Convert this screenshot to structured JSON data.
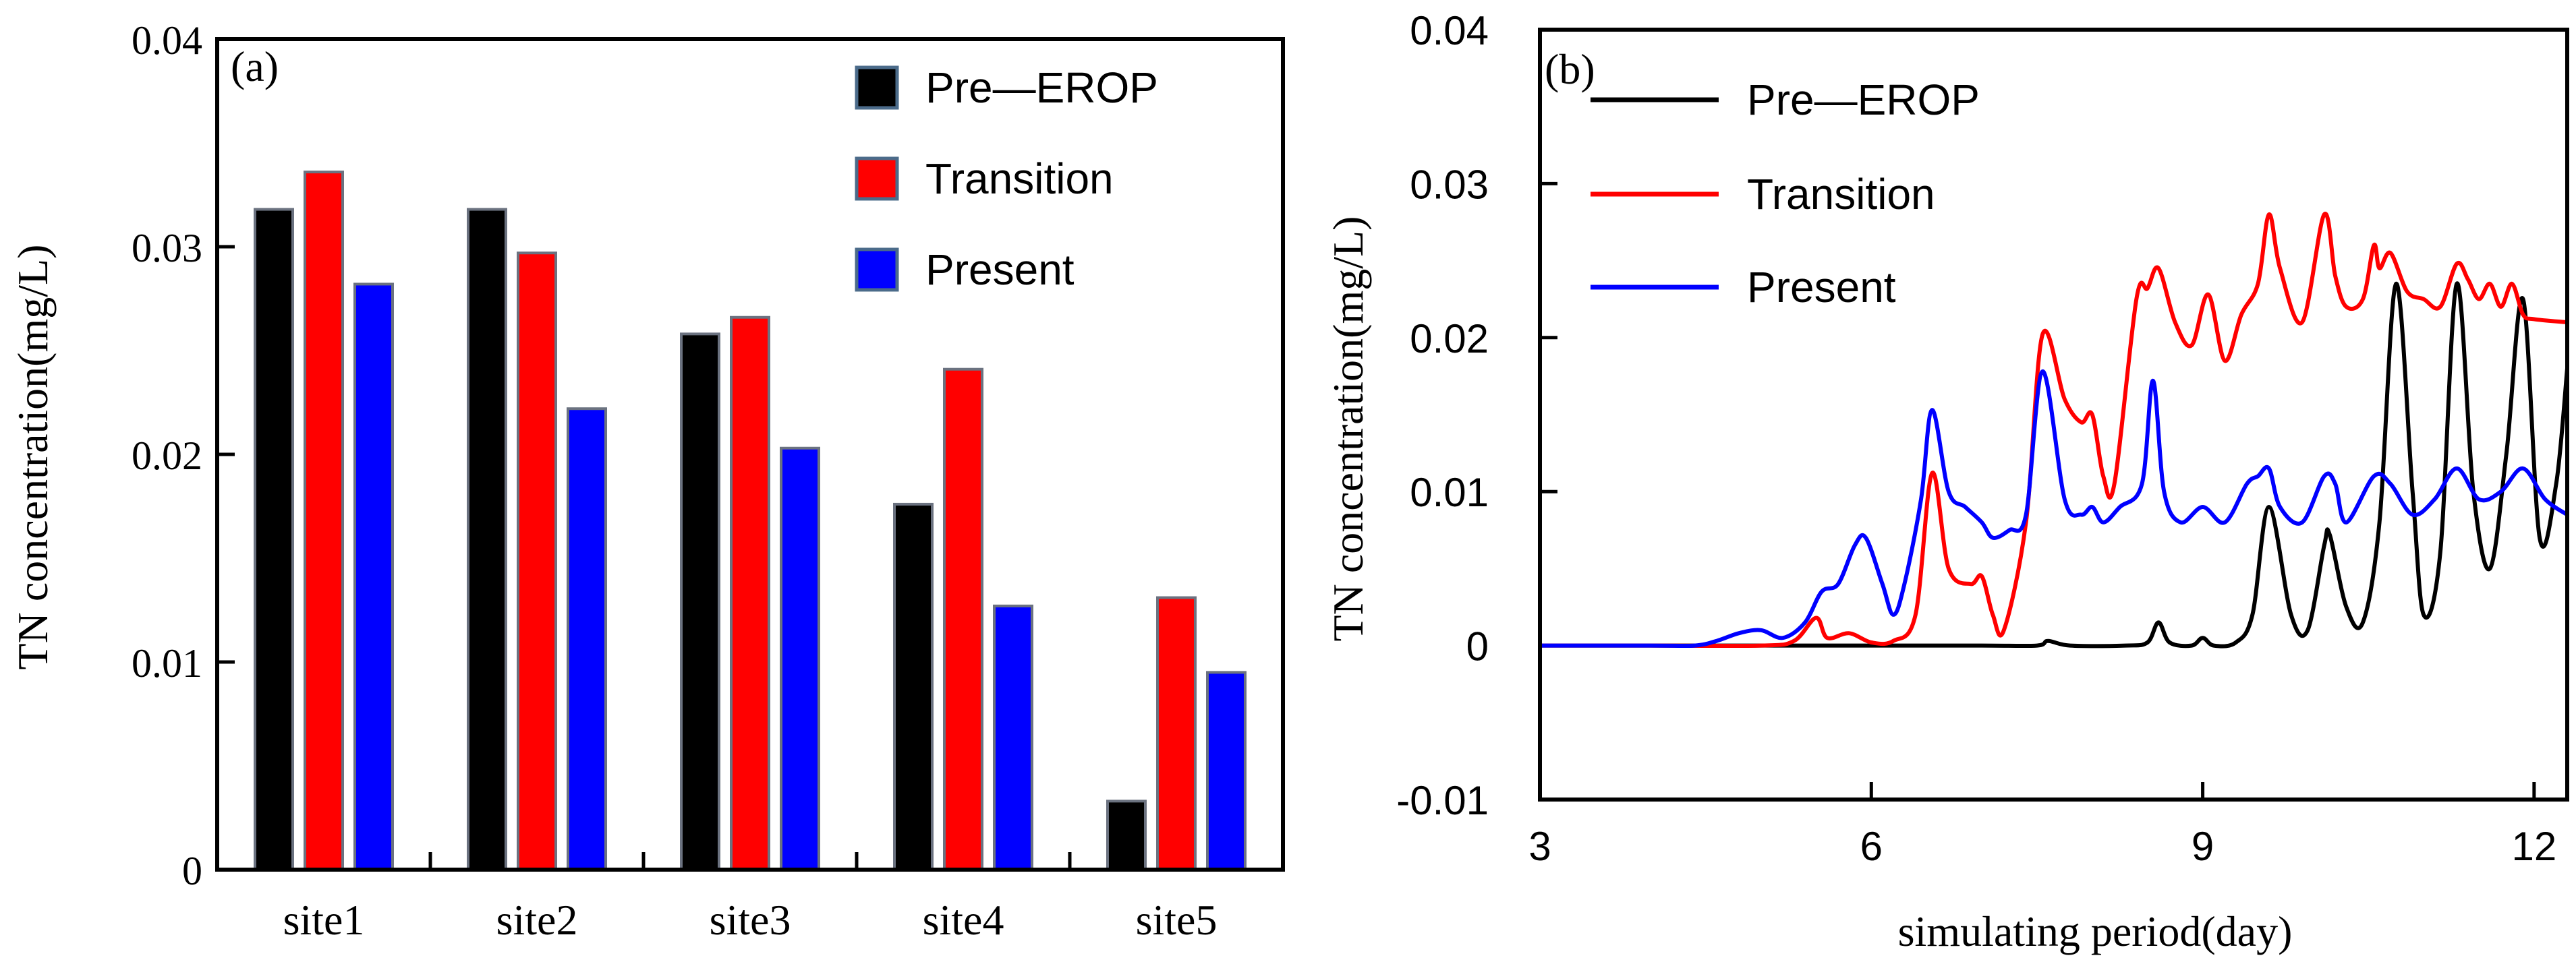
{
  "chart_data": [
    {
      "type": "bar",
      "panel_label": "(a)",
      "ylabel": "TN concentration(mg/L)",
      "xlabel": "",
      "ylim": [
        0,
        0.04
      ],
      "yticks": [
        0,
        0.01,
        0.02,
        0.03,
        0.04
      ],
      "ytick_labels": [
        "0",
        "0.01",
        "0.02",
        "0.03",
        "0.04"
      ],
      "categories": [
        "site1",
        "site2",
        "site3",
        "site4",
        "site5"
      ],
      "series": [
        {
          "name": "Pre—EROP",
          "color": "#000000",
          "values": [
            0.0318,
            0.0318,
            0.0258,
            0.0176,
            0.0033
          ]
        },
        {
          "name": "Transition",
          "color": "#ff0000",
          "values": [
            0.0336,
            0.0297,
            0.0266,
            0.0241,
            0.0131
          ]
        },
        {
          "name": "Present",
          "color": "#0000ff",
          "values": [
            0.0282,
            0.0222,
            0.0203,
            0.0127,
            0.0095
          ]
        }
      ],
      "legend_position": "top-right",
      "grid": false
    },
    {
      "type": "line",
      "panel_label": "(b)",
      "ylabel": "TN concentration(mg/L)",
      "xlabel": "simulating period(day)",
      "xlim": [
        3,
        12.3
      ],
      "xticks": [
        3,
        6,
        9,
        12
      ],
      "xtick_labels": [
        "3",
        "6",
        "9",
        "12"
      ],
      "ylim": [
        -0.01,
        0.04
      ],
      "yticks": [
        -0.01,
        0,
        0.01,
        0.02,
        0.03,
        0.04
      ],
      "ytick_labels": [
        "-0.01",
        "0",
        "0.01",
        "0.02",
        "0.03",
        "0.04"
      ],
      "series": [
        {
          "name": "Pre—EROP",
          "color": "#000000",
          "x": [
            3,
            4,
            5,
            6,
            7,
            7.5,
            7.6,
            7.8,
            8.3,
            8.5,
            8.6,
            8.7,
            8.9,
            9.0,
            9.1,
            9.3,
            9.45,
            9.6,
            9.8,
            9.95,
            10.1,
            10.15,
            10.3,
            10.45,
            10.6,
            10.75,
            10.9,
            11.0,
            11.15,
            11.3,
            11.45,
            11.6,
            11.75,
            11.9,
            12.05,
            12.2,
            12.3
          ],
          "y": [
            0,
            0,
            0,
            0,
            0,
            0,
            0.0003,
            0,
            0,
            0.0002,
            0.0015,
            0.0002,
            0,
            0.0005,
            0,
            0.0002,
            0.002,
            0.009,
            0.002,
            0.001,
            0.0065,
            0.0072,
            0.0025,
            0.0015,
            0.008,
            0.0235,
            0.01,
            0.002,
            0.006,
            0.0235,
            0.01,
            0.005,
            0.0125,
            0.0225,
            0.007,
            0.0105,
            0.018
          ]
        },
        {
          "name": "Transition",
          "color": "#ff0000",
          "x": [
            3,
            4,
            5,
            5.3,
            5.5,
            5.6,
            5.8,
            6.0,
            6.2,
            6.4,
            6.55,
            6.7,
            6.9,
            7.0,
            7.1,
            7.2,
            7.4,
            7.55,
            7.75,
            7.9,
            8.0,
            8.1,
            8.2,
            8.4,
            8.5,
            8.6,
            8.75,
            8.9,
            9.05,
            9.2,
            9.35,
            9.5,
            9.6,
            9.7,
            9.9,
            10.1,
            10.2,
            10.3,
            10.45,
            10.55,
            10.6,
            10.7,
            10.85,
            11.0,
            11.15,
            11.3,
            11.4,
            11.5,
            11.6,
            11.7,
            11.8,
            11.9,
            12.0,
            12.3
          ],
          "y": [
            0,
            0,
            0,
            0.0003,
            0.0018,
            0.0005,
            0.0008,
            0.0002,
            0.0003,
            0.002,
            0.0112,
            0.005,
            0.004,
            0.0045,
            0.002,
            0.001,
            0.008,
            0.0202,
            0.016,
            0.0145,
            0.015,
            0.011,
            0.0105,
            0.0225,
            0.0232,
            0.0245,
            0.021,
            0.0195,
            0.0228,
            0.0185,
            0.0215,
            0.0235,
            0.028,
            0.0245,
            0.021,
            0.028,
            0.024,
            0.022,
            0.0225,
            0.026,
            0.0245,
            0.0255,
            0.023,
            0.0225,
            0.022,
            0.0248,
            0.0238,
            0.0225,
            0.0235,
            0.022,
            0.0235,
            0.0215,
            0.0212,
            0.021
          ]
        },
        {
          "name": "Present",
          "color": "#0000ff",
          "x": [
            3,
            4,
            4.4,
            4.6,
            4.8,
            5.0,
            5.2,
            5.4,
            5.55,
            5.7,
            5.85,
            5.95,
            6.1,
            6.2,
            6.3,
            6.45,
            6.55,
            6.7,
            6.85,
            7.0,
            7.1,
            7.25,
            7.4,
            7.55,
            7.75,
            7.9,
            8.0,
            8.1,
            8.25,
            8.45,
            8.55,
            8.65,
            8.8,
            9.0,
            9.2,
            9.4,
            9.5,
            9.6,
            9.7,
            9.9,
            10.1,
            10.2,
            10.3,
            10.55,
            10.7,
            10.9,
            11.1,
            11.3,
            11.5,
            11.7,
            11.9,
            12.1,
            12.3
          ],
          "y": [
            0,
            0,
            0,
            0.0003,
            0.0008,
            0.001,
            0.0005,
            0.0015,
            0.0035,
            0.004,
            0.0065,
            0.007,
            0.004,
            0.002,
            0.004,
            0.0095,
            0.0153,
            0.01,
            0.009,
            0.008,
            0.007,
            0.0075,
            0.0085,
            0.0178,
            0.0095,
            0.0085,
            0.009,
            0.008,
            0.009,
            0.0105,
            0.0172,
            0.01,
            0.008,
            0.009,
            0.008,
            0.0105,
            0.011,
            0.0115,
            0.009,
            0.008,
            0.011,
            0.0105,
            0.008,
            0.011,
            0.0105,
            0.0085,
            0.0095,
            0.0115,
            0.0095,
            0.01,
            0.0115,
            0.0095,
            0.0085
          ]
        }
      ],
      "legend_position": "top-left",
      "grid": false
    }
  ]
}
